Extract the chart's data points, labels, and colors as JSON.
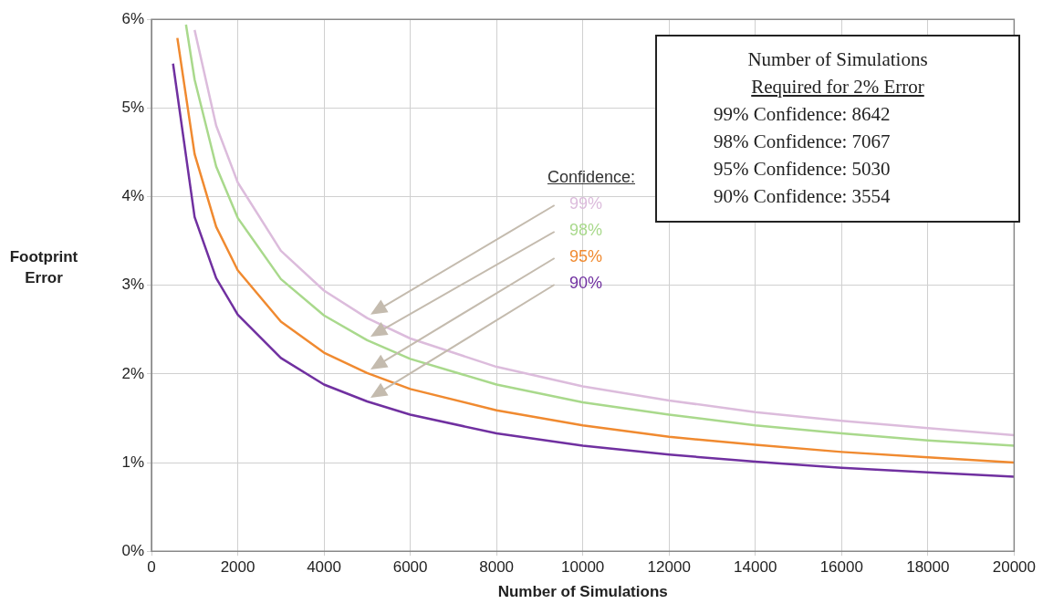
{
  "chart_data": {
    "type": "line",
    "xlabel": "Number of Simulations",
    "ylabel": "Footprint Error",
    "legend_title": "Confidence:",
    "xlim": [
      0,
      20000
    ],
    "xticks": [
      0,
      2000,
      4000,
      6000,
      8000,
      10000,
      12000,
      14000,
      16000,
      18000,
      20000
    ],
    "ylim": [
      0,
      6
    ],
    "yticks": [
      {
        "value": 0,
        "label": "0%"
      },
      {
        "value": 1,
        "label": "1%"
      },
      {
        "value": 2,
        "label": "2%"
      },
      {
        "value": 3,
        "label": "3%"
      },
      {
        "value": 4,
        "label": "4%"
      },
      {
        "value": 5,
        "label": "5%"
      },
      {
        "value": 6,
        "label": "6%"
      }
    ],
    "grid": true,
    "marker": "none",
    "line_style": "solid",
    "series": [
      {
        "name": "99%",
        "color": "#dcbcdc",
        "x": [
          1000,
          1500,
          2000,
          3000,
          4000,
          5000,
          6000,
          8000,
          10000,
          12000,
          14000,
          16000,
          18000,
          20000
        ],
        "values": [
          5.88,
          4.8,
          4.16,
          3.39,
          2.94,
          2.63,
          2.4,
          2.08,
          1.86,
          1.7,
          1.57,
          1.47,
          1.39,
          1.31
        ]
      },
      {
        "name": "98%",
        "color": "#a9d98c",
        "x": [
          800,
          1000,
          1500,
          2000,
          3000,
          4000,
          5000,
          6000,
          8000,
          10000,
          12000,
          14000,
          16000,
          18000,
          20000
        ],
        "values": [
          5.94,
          5.32,
          4.34,
          3.76,
          3.07,
          2.66,
          2.38,
          2.17,
          1.88,
          1.68,
          1.54,
          1.42,
          1.33,
          1.25,
          1.19
        ]
      },
      {
        "name": "95%",
        "color": "#f08a30",
        "x": [
          600,
          1000,
          1500,
          2000,
          3000,
          4000,
          5000,
          6000,
          8000,
          10000,
          12000,
          14000,
          16000,
          18000,
          20000
        ],
        "values": [
          5.79,
          4.48,
          3.66,
          3.17,
          2.59,
          2.24,
          2.01,
          1.83,
          1.59,
          1.42,
          1.29,
          1.2,
          1.12,
          1.06,
          1.0
        ]
      },
      {
        "name": "90%",
        "color": "#7030a0",
        "x": [
          500,
          1000,
          1500,
          2000,
          3000,
          4000,
          5000,
          6000,
          8000,
          10000,
          12000,
          14000,
          16000,
          18000,
          20000
        ],
        "values": [
          5.5,
          3.77,
          3.08,
          2.67,
          2.18,
          1.88,
          1.69,
          1.54,
          1.33,
          1.19,
          1.09,
          1.01,
          0.94,
          0.89,
          0.84
        ]
      }
    ],
    "annotations": [
      "Number of Simulations",
      "Required for 2% Error",
      "99% Confidence: 8642",
      "98% Confidence: 7067",
      "95% Confidence: 5030",
      "90% Confidence: 3554"
    ]
  }
}
